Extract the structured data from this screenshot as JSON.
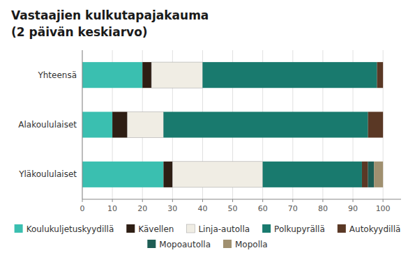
{
  "chart_data": {
    "type": "bar",
    "orientation": "horizontal",
    "stacked": true,
    "title": "Vastaajien kulkutapajakauma",
    "subtitle": "(2 päivän keskiarvo)",
    "categories": [
      "Yhteensä",
      "Alakoululaiset",
      "Yläkoululaiset"
    ],
    "series": [
      {
        "name": "Koulukuljetuskyydillä",
        "color": "#3abfb0",
        "values": [
          20,
          10,
          27
        ]
      },
      {
        "name": "Kävellen",
        "color": "#2e1e14",
        "values": [
          3,
          5,
          3
        ]
      },
      {
        "name": "Linja-autolla",
        "color": "#f0ede4",
        "values": [
          17,
          12,
          30
        ]
      },
      {
        "name": "Polkupyrällä",
        "color": "#197a6e",
        "values": [
          58,
          68,
          33
        ]
      },
      {
        "name": "Autokyydillä",
        "color": "#5a3825",
        "values": [
          2,
          5,
          2
        ]
      },
      {
        "name": "Mopoautolla",
        "color": "#1e5e55",
        "values": [
          0,
          0,
          2
        ]
      },
      {
        "name": "Mopolla",
        "color": "#a09070",
        "values": [
          0,
          0,
          3
        ]
      }
    ],
    "xlim": [
      0,
      106
    ],
    "xticks": [
      0,
      10,
      20,
      30,
      40,
      50,
      60,
      70,
      80,
      90,
      100
    ],
    "grid": true,
    "legend": "bottom"
  }
}
